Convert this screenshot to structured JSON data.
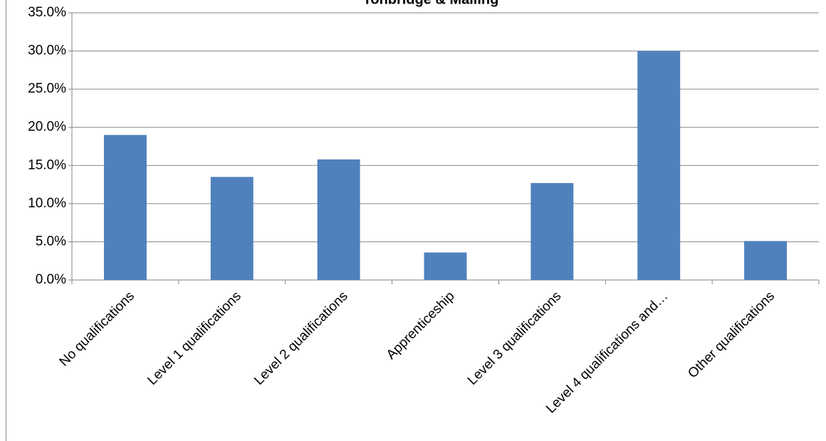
{
  "chart_data": {
    "type": "bar",
    "title": "Tonbridge & Malling",
    "categories": [
      "No qualifications",
      "Level 1 qualifications",
      "Level 2 qualifications",
      "Apprenticeship",
      "Level 3 qualifications",
      "Level 4 qualifications and…",
      "Other qualifications"
    ],
    "values": [
      19.0,
      13.5,
      15.8,
      3.6,
      12.7,
      30.0,
      5.1
    ],
    "color": "#4f81bd",
    "ylim": [
      0,
      35
    ],
    "yticks": [
      {
        "value": 0,
        "label": "0.0%"
      },
      {
        "value": 5,
        "label": "5.0%"
      },
      {
        "value": 10,
        "label": "10.0%"
      },
      {
        "value": 15,
        "label": "15.0%"
      },
      {
        "value": 20,
        "label": "20.0%"
      },
      {
        "value": 25,
        "label": "25.0%"
      },
      {
        "value": 30,
        "label": "30.0%"
      },
      {
        "value": 35,
        "label": "35.0%"
      }
    ],
    "grid": true
  }
}
